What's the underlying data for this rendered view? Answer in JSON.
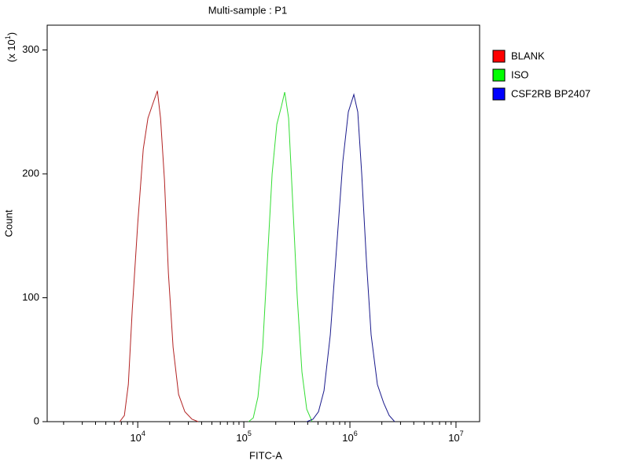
{
  "chart_data": {
    "type": "line",
    "title": "Multi-sample : P1",
    "x_label": "FITC-A",
    "y_label": "Count",
    "y_multiplier": {
      "base": "(x 10",
      "exponent": "1",
      "close": ")"
    },
    "x_log": true,
    "xlim": [
      1400,
      16700000
    ],
    "ylim": [
      0,
      320
    ],
    "xticks": [
      {
        "value": 10000,
        "label": "10",
        "exponent": "4"
      },
      {
        "value": 100000,
        "label": "10",
        "exponent": "5"
      },
      {
        "value": 1000000,
        "label": "10",
        "exponent": "6"
      },
      {
        "value": 10000000,
        "label": "10",
        "exponent": "7"
      }
    ],
    "xticks_minor": [
      2000,
      3000,
      4000,
      5000,
      6000,
      7000,
      8000,
      9000,
      20000,
      30000,
      40000,
      50000,
      60000,
      70000,
      80000,
      90000,
      200000,
      300000,
      400000,
      500000,
      600000,
      700000,
      800000,
      900000,
      2000000,
      3000000,
      4000000,
      5000000,
      6000000,
      7000000,
      8000000,
      9000000
    ],
    "yticks": [
      0,
      100,
      200,
      300
    ],
    "legend": "right",
    "series": [
      {
        "name": "BLANK",
        "color": "#b22222",
        "legend_color": "#ff0000",
        "x": [
          6760,
          7480,
          8150,
          8870,
          10000,
          11270,
          12480,
          14060,
          15310,
          16400,
          17860,
          19450,
          21540,
          24260,
          27800,
          32430,
          37150
        ],
        "values": [
          0,
          5,
          30,
          90,
          160,
          220,
          245,
          258,
          267,
          245,
          195,
          120,
          60,
          22,
          8,
          2,
          0
        ]
      },
      {
        "name": "ISO",
        "color": "#33dd33",
        "legend_color": "#00ff00",
        "x": [
          110800,
          122700,
          135900,
          150600,
          166800,
          184800,
          204700,
          226800,
          242700,
          264300,
          287800,
          319000,
          353100,
          391700,
          440800
        ],
        "values": [
          0,
          3,
          20,
          60,
          130,
          200,
          240,
          255,
          266,
          245,
          180,
          100,
          40,
          10,
          0
        ]
      },
      {
        "name": "CSF2RB BP2407",
        "color": "#1a1a8c",
        "legend_color": "#0000ff",
        "x": [
          391700,
          448900,
          505500,
          569800,
          653300,
          748500,
          857600,
          966500,
          1089000,
          1186000,
          1292000,
          1431000,
          1585000,
          1816000,
          2083000,
          2345000,
          2642000
        ],
        "values": [
          0,
          2,
          8,
          25,
          70,
          140,
          210,
          250,
          264,
          250,
          200,
          130,
          70,
          30,
          15,
          5,
          0
        ]
      }
    ]
  }
}
